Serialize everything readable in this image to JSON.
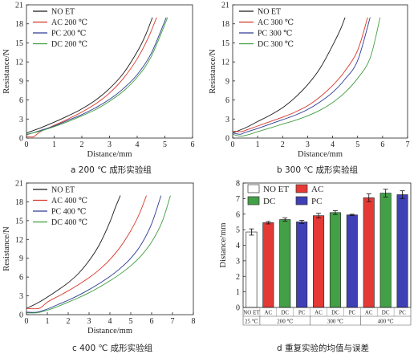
{
  "chart_data": [
    {
      "type": "line",
      "caption": "a 200 ℃ 成形实验组",
      "xlabel": "Distance/mm",
      "ylabel": "Resistance/N",
      "xlim": [
        0,
        6
      ],
      "ylim": [
        0,
        21
      ],
      "xticks": [
        0,
        1,
        2,
        3,
        4,
        5,
        6
      ],
      "yticks": [
        0,
        3,
        6,
        9,
        12,
        15,
        18,
        21
      ],
      "legend": "top-left",
      "series": [
        {
          "name": "NO ET",
          "color": "#1a1a1a",
          "x": [
            0,
            0.5,
            1,
            1.5,
            2,
            2.5,
            3,
            3.5,
            4,
            4.3,
            4.55
          ],
          "y": [
            0.8,
            1.6,
            2.5,
            3.5,
            4.6,
            6.0,
            7.8,
            10.2,
            13.6,
            16.2,
            19
          ]
        },
        {
          "name": "AC 200 ℃",
          "color": "#d9362a",
          "x": [
            0,
            0.25,
            0.5,
            1,
            1.5,
            2,
            2.5,
            3,
            3.5,
            4,
            4.4,
            4.7
          ],
          "y": [
            0.3,
            0.2,
            1.0,
            2.0,
            3.0,
            4.1,
            5.4,
            7.1,
            9.4,
            12.5,
            15.8,
            19
          ]
        },
        {
          "name": "PC 200 ℃",
          "color": "#2e3b93",
          "x": [
            0,
            0.5,
            1,
            1.5,
            2,
            2.5,
            3,
            3.5,
            4,
            4.5,
            5.05
          ],
          "y": [
            0.5,
            1.2,
            1.9,
            2.8,
            3.7,
            4.8,
            6.1,
            7.8,
            10.0,
            13.3,
            19
          ]
        },
        {
          "name": "DC 200 ℃",
          "color": "#3f9e3f",
          "x": [
            0,
            0.5,
            1,
            1.5,
            2,
            2.5,
            3,
            3.5,
            4,
            4.5,
            5.1
          ],
          "y": [
            0.6,
            1.1,
            1.8,
            2.6,
            3.5,
            4.5,
            5.8,
            7.4,
            9.6,
            12.8,
            19
          ]
        }
      ]
    },
    {
      "type": "line",
      "caption": "b 300 ℃ 成形实验组",
      "xlabel": "Distance/mm",
      "ylabel": "Resistance/N",
      "xlim": [
        0,
        7
      ],
      "ylim": [
        0,
        21
      ],
      "xticks": [
        0,
        1,
        2,
        3,
        4,
        5,
        6,
        7
      ],
      "yticks": [
        0,
        3,
        6,
        9,
        12,
        15,
        18,
        21
      ],
      "legend": "top-left",
      "series": [
        {
          "name": "NO ET",
          "color": "#1a1a1a",
          "x": [
            0,
            0.5,
            1,
            1.5,
            2,
            2.5,
            3,
            3.5,
            4,
            4.3,
            4.5
          ],
          "y": [
            0.8,
            1.6,
            2.6,
            3.6,
            4.8,
            6.4,
            8.4,
            11.0,
            14.6,
            17.0,
            19
          ]
        },
        {
          "name": "AC 300 ℃",
          "color": "#d9362a",
          "x": [
            0,
            0.3,
            0.5,
            1,
            1.5,
            2,
            2.5,
            3,
            3.5,
            4,
            4.5,
            5,
            5.4
          ],
          "y": [
            1.1,
            1.0,
            1.2,
            1.9,
            2.6,
            3.3,
            4.1,
            5.1,
            6.5,
            8.3,
            10.6,
            13.8,
            19
          ]
        },
        {
          "name": "PC 300 ℃",
          "color": "#2e3b93",
          "x": [
            0,
            0.3,
            0.5,
            1,
            1.5,
            2,
            2.5,
            3,
            3.5,
            4,
            4.5,
            5,
            5.5
          ],
          "y": [
            0.8,
            0.6,
            0.9,
            1.5,
            2.2,
            2.9,
            3.6,
            4.5,
            5.7,
            7.2,
            9.3,
            12.2,
            19
          ]
        },
        {
          "name": "DC 300 ℃",
          "color": "#3f9e3f",
          "x": [
            0,
            0.3,
            0.6,
            1,
            1.5,
            2,
            2.5,
            3,
            3.5,
            4,
            4.5,
            5,
            5.5,
            5.9
          ],
          "y": [
            0.6,
            0.3,
            0.5,
            1.0,
            1.6,
            2.2,
            2.8,
            3.5,
            4.4,
            5.6,
            7.2,
            9.4,
            12.6,
            19
          ]
        }
      ]
    },
    {
      "type": "line",
      "caption": "c 400 ℃ 成形实验组",
      "xlabel": "Distance/mm",
      "ylabel": "Resistance/N",
      "xlim": [
        0,
        8
      ],
      "ylim": [
        0,
        21
      ],
      "xticks": [
        0,
        1,
        2,
        3,
        4,
        5,
        6,
        7,
        8
      ],
      "yticks": [
        0,
        3,
        6,
        9,
        12,
        15,
        18,
        21
      ],
      "legend": "top-left",
      "series": [
        {
          "name": "NO ET",
          "color": "#1a1a1a",
          "x": [
            0,
            0.5,
            1,
            1.5,
            2,
            2.5,
            3,
            3.5,
            4,
            4.25,
            4.5
          ],
          "y": [
            1.0,
            1.8,
            2.8,
            3.9,
            5.1,
            6.6,
            8.6,
            11.2,
            14.8,
            17.0,
            19
          ]
        },
        {
          "name": "AC 400 ℃",
          "color": "#d9362a",
          "x": [
            0,
            0.6,
            1,
            1.5,
            2,
            2.5,
            3,
            3.5,
            4,
            4.5,
            5,
            5.4,
            5.75
          ],
          "y": [
            1.0,
            1.0,
            2.0,
            2.9,
            3.8,
            4.8,
            5.9,
            7.2,
            8.8,
            10.8,
            13.4,
            16.0,
            19
          ]
        },
        {
          "name": "PC 400 ℃",
          "color": "#2e3b93",
          "x": [
            0,
            0.5,
            1,
            1.5,
            2,
            2.5,
            3,
            3.5,
            4,
            4.5,
            5,
            5.5,
            6,
            6.45
          ],
          "y": [
            0.4,
            0.4,
            0.9,
            1.6,
            2.3,
            3.1,
            4.0,
            5.0,
            6.1,
            7.4,
            9.0,
            11.2,
            14.5,
            19
          ]
        },
        {
          "name": "DC 400 ℃",
          "color": "#3f9e3f",
          "x": [
            0,
            0.5,
            1,
            1.5,
            2,
            2.5,
            3,
            3.5,
            4,
            4.5,
            5,
            5.5,
            6,
            6.5,
            6.9
          ],
          "y": [
            0.3,
            0.3,
            0.7,
            1.3,
            2.0,
            2.7,
            3.5,
            4.4,
            5.4,
            6.5,
            7.8,
            9.4,
            11.6,
            14.8,
            19
          ]
        }
      ]
    },
    {
      "type": "bar",
      "caption": "d 重复实验的均值与误差",
      "xlabel": "",
      "ylabel": "Distance/mm",
      "ylim": [
        0,
        8
      ],
      "yticks": [
        0,
        1,
        2,
        3,
        4,
        5,
        6,
        7,
        8
      ],
      "legend": "top",
      "categories": [
        "NO ET",
        "AC",
        "DC",
        "PC",
        "AC",
        "DC",
        "PC",
        "AC",
        "DC",
        "PC"
      ],
      "groups": [
        {
          "label": "25 ℃",
          "span": 1
        },
        {
          "label": "200 ℃",
          "span": 3
        },
        {
          "label": "300 ℃",
          "span": 3
        },
        {
          "label": "400 ℃",
          "span": 3
        }
      ],
      "series": [
        {
          "name": "NO ET",
          "color": "#ffffff"
        },
        {
          "name": "AC",
          "color": "#e53935"
        },
        {
          "name": "DC",
          "color": "#43a047"
        },
        {
          "name": "PC",
          "color": "#3f40b5"
        }
      ],
      "values": [
        4.85,
        5.45,
        5.65,
        5.5,
        5.9,
        6.1,
        5.95,
        7.05,
        7.35,
        7.25
      ],
      "errors": [
        0.2,
        0.08,
        0.1,
        0.1,
        0.15,
        0.12,
        0.04,
        0.25,
        0.25,
        0.25
      ]
    }
  ]
}
